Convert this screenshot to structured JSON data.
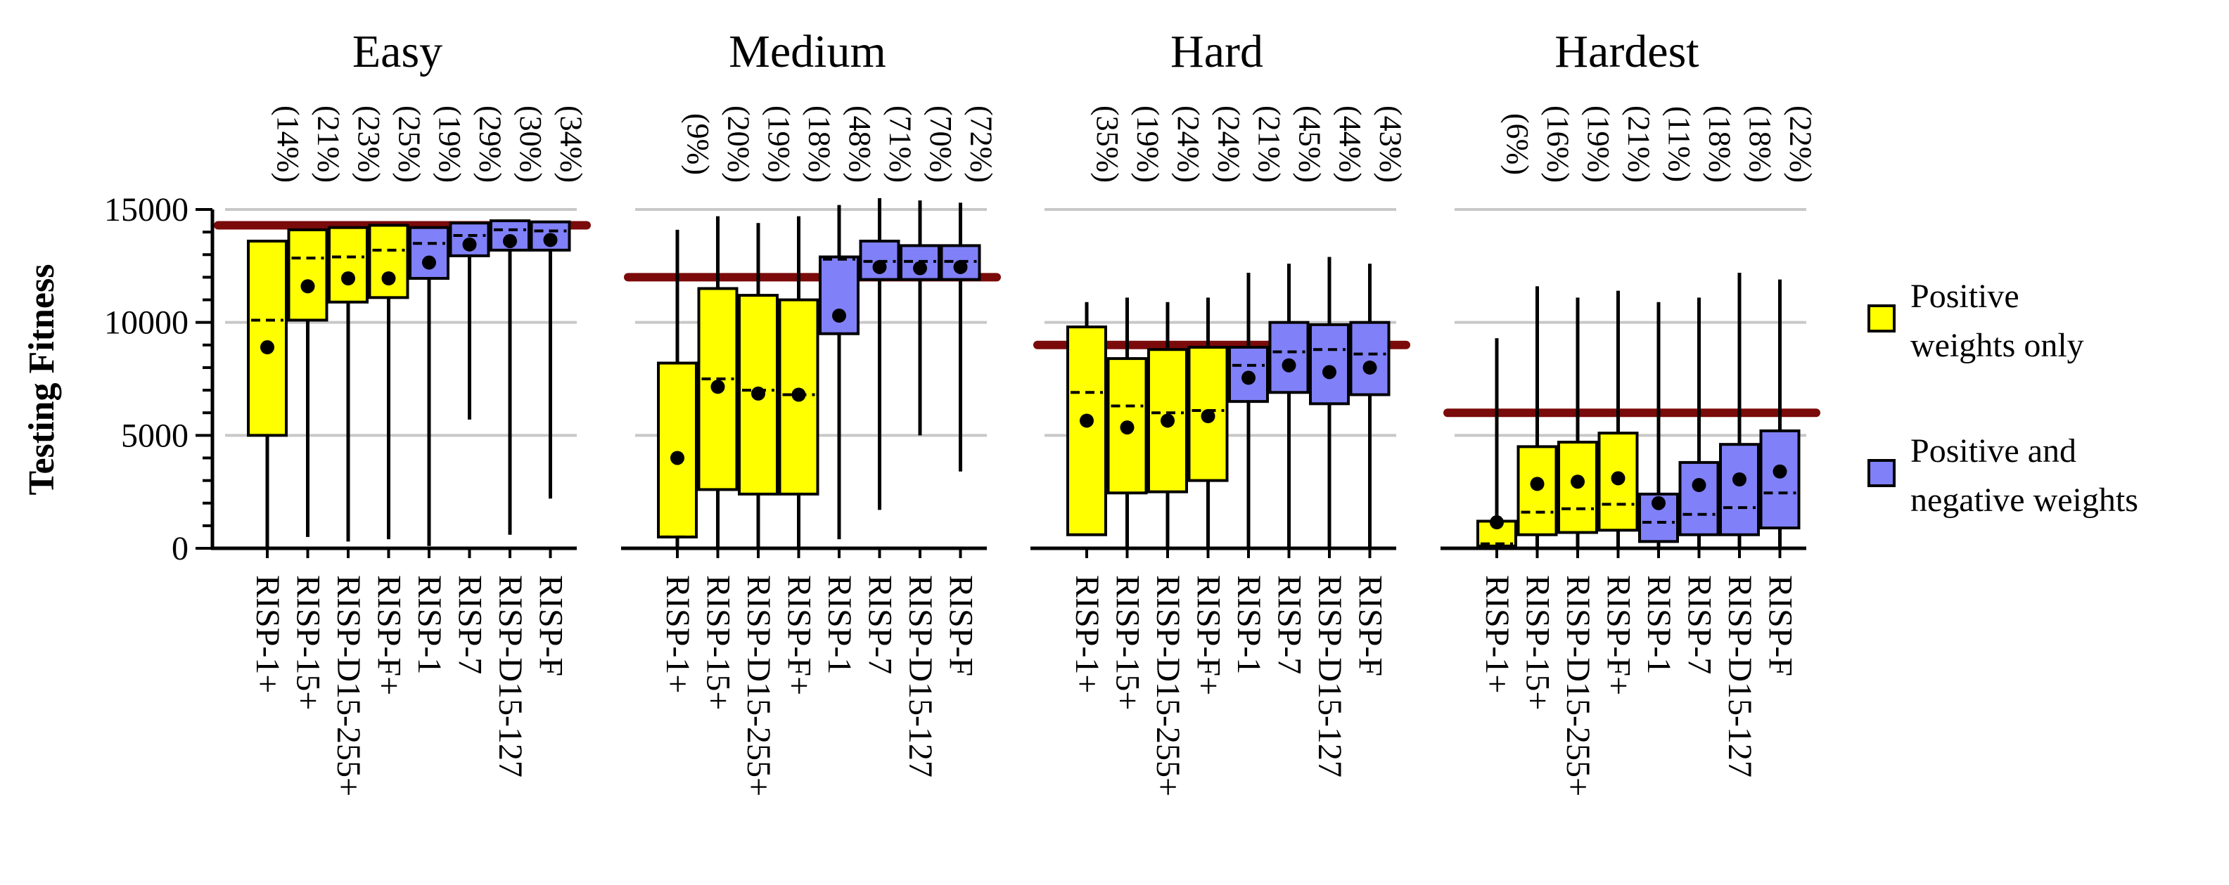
{
  "chart_data": {
    "type": "boxplot",
    "ylabel": "Testing Fitness",
    "ylim": [
      0,
      15000
    ],
    "yticks": [
      0,
      5000,
      10000,
      15000
    ],
    "grid": true,
    "legend": {
      "placement": "right",
      "items": [
        {
          "label_line1": "Positive",
          "label_line2": "weights only",
          "color": "#ffff00"
        },
        {
          "label_line1": "Positive and",
          "label_line2": "negative weights",
          "color": "#8080f8"
        }
      ]
    },
    "colors": {
      "positive_only": "#ffff00",
      "positive_negative": "#8080f8",
      "reference_line": "#7b0a0a",
      "grid": "#c8c8c8"
    },
    "categories": [
      "RISP-1+",
      "RISP-15+",
      "RISP-D15-255+",
      "RISP-F+",
      "RISP-1",
      "RISP-7",
      "RISP-D15-127",
      "RISP-F"
    ],
    "groups": [
      "pos",
      "pos",
      "pos",
      "pos",
      "both",
      "both",
      "both",
      "both"
    ],
    "panels": [
      {
        "title": "Easy",
        "reference": 14300,
        "percent_labels": [
          "(14%)",
          "(21%)",
          "(23%)",
          "(25%)",
          "(19%)",
          "(29%)",
          "(30%)",
          "(34%)"
        ],
        "boxes": [
          {
            "min": 0,
            "q1": 5000,
            "median": 10100,
            "q3": 13600,
            "max": 13600,
            "mean": 8900
          },
          {
            "min": 500,
            "q1": 10100,
            "median": 12850,
            "q3": 14100,
            "max": 14100,
            "mean": 11600
          },
          {
            "min": 300,
            "q1": 10900,
            "median": 12900,
            "q3": 14200,
            "max": 14200,
            "mean": 11950
          },
          {
            "min": 400,
            "q1": 11100,
            "median": 13200,
            "q3": 14300,
            "max": 14300,
            "mean": 11950
          },
          {
            "min": 100,
            "q1": 11950,
            "median": 13500,
            "q3": 14200,
            "max": 14200,
            "mean": 12650
          },
          {
            "min": 5700,
            "q1": 12950,
            "median": 13850,
            "q3": 14400,
            "max": 14400,
            "mean": 13450
          },
          {
            "min": 600,
            "q1": 13200,
            "median": 14100,
            "q3": 14500,
            "max": 14500,
            "mean": 13600
          },
          {
            "min": 2200,
            "q1": 13200,
            "median": 14050,
            "q3": 14450,
            "max": 14450,
            "mean": 13650
          }
        ]
      },
      {
        "title": "Medium",
        "reference": 12000,
        "percent_labels": [
          "(9%)",
          "(20%)",
          "(19%)",
          "(18%)",
          "(48%)",
          "(71%)",
          "(70%)",
          "(72%)"
        ],
        "boxes": [
          {
            "min": 0,
            "q1": 500,
            "median": 500,
            "q3": 8200,
            "max": 14100,
            "mean": 4000
          },
          {
            "min": 0,
            "q1": 2600,
            "median": 7500,
            "q3": 11500,
            "max": 14700,
            "mean": 7150
          },
          {
            "min": 0,
            "q1": 2400,
            "median": 7000,
            "q3": 11200,
            "max": 14400,
            "mean": 6850
          },
          {
            "min": 0,
            "q1": 2400,
            "median": 6800,
            "q3": 11000,
            "max": 14700,
            "mean": 6800
          },
          {
            "min": 400,
            "q1": 9500,
            "median": 12800,
            "q3": 12900,
            "max": 15200,
            "mean": 10300
          },
          {
            "min": 1700,
            "q1": 11900,
            "median": 12700,
            "q3": 13600,
            "max": 15500,
            "mean": 12450
          },
          {
            "min": 5000,
            "q1": 11900,
            "median": 12700,
            "q3": 13400,
            "max": 15400,
            "mean": 12400
          },
          {
            "min": 3400,
            "q1": 11900,
            "median": 12700,
            "q3": 13400,
            "max": 15300,
            "mean": 12450
          }
        ]
      },
      {
        "title": "Hard",
        "reference": 9000,
        "percent_labels": [
          "(35%)",
          "(19%)",
          "(24%)",
          "(24%)",
          "(21%)",
          "(45%)",
          "(44%)",
          "(43%)"
        ],
        "boxes": [
          {
            "min": 600,
            "q1": 600,
            "median": 6900,
            "q3": 9800,
            "max": 10900,
            "mean": 5650
          },
          {
            "min": 0,
            "q1": 2450,
            "median": 6300,
            "q3": 8400,
            "max": 11100,
            "mean": 5350
          },
          {
            "min": 0,
            "q1": 2500,
            "median": 6000,
            "q3": 8800,
            "max": 10900,
            "mean": 5650
          },
          {
            "min": 0,
            "q1": 3000,
            "median": 6100,
            "q3": 8900,
            "max": 11100,
            "mean": 5850
          },
          {
            "min": 0,
            "q1": 6500,
            "median": 8100,
            "q3": 8900,
            "max": 12200,
            "mean": 7550
          },
          {
            "min": 0,
            "q1": 6900,
            "median": 8700,
            "q3": 10000,
            "max": 12600,
            "mean": 8100
          },
          {
            "min": 0,
            "q1": 6400,
            "median": 8800,
            "q3": 9900,
            "max": 12900,
            "mean": 7800
          },
          {
            "min": 0,
            "q1": 6800,
            "median": 8600,
            "q3": 10000,
            "max": 12600,
            "mean": 8000
          }
        ]
      },
      {
        "title": "Hardest",
        "reference": 6000,
        "percent_labels": [
          "(6%)",
          "(16%)",
          "(19%)",
          "(21%)",
          "(11%)",
          "(18%)",
          "(18%)",
          "(22%)"
        ],
        "boxes": [
          {
            "min": 0,
            "q1": 100,
            "median": 200,
            "q3": 1200,
            "max": 9300,
            "mean": 1150
          },
          {
            "min": 0,
            "q1": 600,
            "median": 1600,
            "q3": 4500,
            "max": 11600,
            "mean": 2850
          },
          {
            "min": 0,
            "q1": 700,
            "median": 1750,
            "q3": 4700,
            "max": 11100,
            "mean": 2950
          },
          {
            "min": 0,
            "q1": 800,
            "median": 1950,
            "q3": 5100,
            "max": 11400,
            "mean": 3100
          },
          {
            "min": 0,
            "q1": 300,
            "median": 1150,
            "q3": 2400,
            "max": 10900,
            "mean": 2000
          },
          {
            "min": 0,
            "q1": 600,
            "median": 1500,
            "q3": 3800,
            "max": 11100,
            "mean": 2800
          },
          {
            "min": 0,
            "q1": 600,
            "median": 1800,
            "q3": 4600,
            "max": 12200,
            "mean": 3050
          },
          {
            "min": 0,
            "q1": 900,
            "median": 2450,
            "q3": 5200,
            "max": 11900,
            "mean": 3400
          }
        ]
      }
    ]
  }
}
